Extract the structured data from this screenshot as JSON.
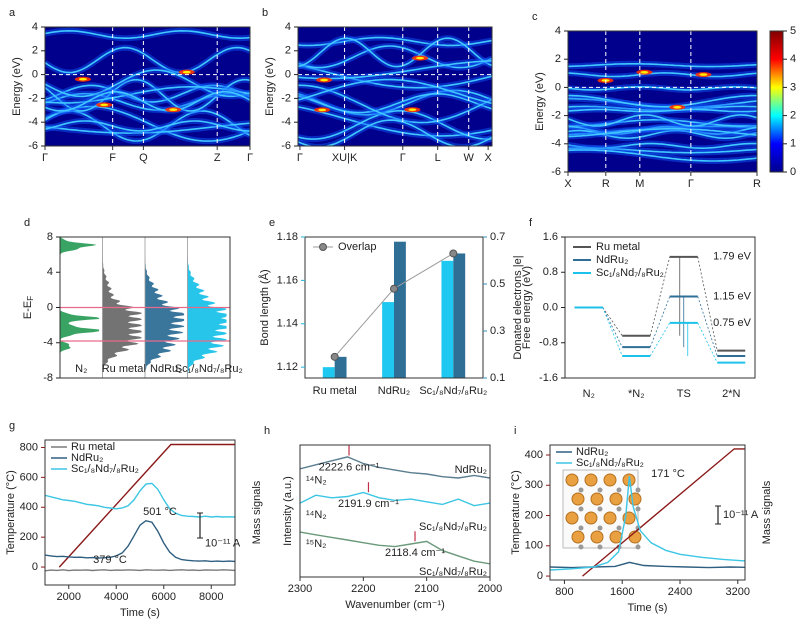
{
  "chart_data": [
    {
      "type": "heatmap",
      "label": "a",
      "ylabel": "Energy (eV)",
      "ylim": [
        -6,
        4
      ],
      "yticks": [
        -6,
        -4,
        -2,
        0,
        2,
        4
      ],
      "categories": [
        "Γ",
        "F",
        "Q",
        "Z",
        "Γ"
      ]
    },
    {
      "type": "heatmap",
      "label": "b",
      "ylabel": "Energy (eV)",
      "ylim": [
        -6,
        4
      ],
      "yticks": [
        -6,
        -4,
        -2,
        0,
        2,
        4
      ],
      "categories": [
        "Γ",
        "XU|K",
        "Γ",
        "L",
        "W",
        "X"
      ]
    },
    {
      "type": "heatmap",
      "label": "c",
      "ylabel": "Energy (eV)",
      "ylim": [
        -6,
        4
      ],
      "yticks": [
        -6,
        -4,
        -2,
        0,
        2,
        4
      ],
      "categories": [
        "X",
        "R",
        "M",
        "Γ",
        "R"
      ],
      "zlim": [
        0,
        5
      ],
      "zticks": [
        0,
        1,
        2,
        3,
        4,
        5
      ]
    },
    {
      "type": "dos",
      "label": "d",
      "ylabel": "E-E",
      "ylabel_sub": "F",
      "ylim": [
        -8,
        8
      ],
      "yticks": [
        -8,
        -4,
        0,
        4,
        8
      ],
      "categories": [
        "N₂",
        "Ru metal",
        "NdRu₂",
        "Sc₁/₈Nd₇/₈Ru₂"
      ],
      "colors": [
        "#2e9e5b",
        "#6b6b6b",
        "#2f6f96",
        "#1cc2ea"
      ],
      "reference_lines": [
        0,
        -3.8
      ]
    },
    {
      "type": "bar",
      "label": "e",
      "categories": [
        "Ru metal",
        "NdRu₂",
        "Sc₁/₈Nd₇/₈Ru₂"
      ],
      "ylabel": "Bond length (Å)",
      "y2label": "Donated electrons |e|",
      "ylim": [
        1.115,
        1.18
      ],
      "yticks": [
        1.12,
        1.14,
        1.16,
        1.18
      ],
      "y2lim": [
        0.1,
        0.7
      ],
      "y2ticks": [
        0.1,
        0.3,
        0.5,
        0.7
      ],
      "series": [
        {
          "color": "#1ec8f0",
          "values": [
            1.12,
            1.15,
            1.169
          ]
        },
        {
          "color": "#2f6f96",
          "values": [
            0.19,
            0.68,
            0.63
          ],
          "axis": "y2"
        },
        {
          "name": "Overlap",
          "type": "line",
          "color": "#9a9a9a",
          "values": [
            0.19,
            0.48,
            0.63
          ],
          "axis": "y2"
        }
      ]
    },
    {
      "type": "energy-diagram",
      "label": "f",
      "ylabel": "Free energy (eV)",
      "categories": [
        "N₂",
        "*N₂",
        "TS",
        "2*N"
      ],
      "ylim": [
        -1.6,
        1.6
      ],
      "yticks": [
        -1.6,
        -0.8,
        {
          "value": 0,
          "label": "0.0"
        },
        0.8,
        1.6
      ],
      "series": [
        {
          "name": "Ru metal",
          "color": "#555555",
          "values": [
            0,
            -0.64,
            1.15,
            -0.98
          ]
        },
        {
          "name": "NdRu₂",
          "color": "#2f6f96",
          "values": [
            0,
            -0.9,
            0.25,
            -1.1
          ]
        },
        {
          "name": "Sc₁/₈Nd₇/₈Ru₂",
          "color": "#1cc2ea",
          "values": [
            0,
            -1.1,
            -0.35,
            -1.25
          ]
        }
      ],
      "annotations": [
        "1.79 eV",
        "1.15 eV",
        "0.75 eV"
      ]
    },
    {
      "type": "line",
      "label": "g",
      "xlabel": "Time (s)",
      "ylabel": "Temperature (°C)",
      "y2label": "Mass signals",
      "axis_color": "#8b1a1a",
      "legend": true,
      "xlim": [
        1000,
        9000
      ],
      "xticks": [
        2000,
        4000,
        6000,
        8000
      ],
      "ylim": [
        -120,
        850
      ],
      "yticks": [
        0,
        200,
        400,
        600,
        800
      ],
      "x": [
        1000,
        1250,
        1500,
        1750,
        2000,
        2250,
        2500,
        2750,
        3000,
        3250,
        3500,
        3750,
        4000,
        4250,
        4500,
        4750,
        5000,
        5250,
        5500,
        5750,
        6000,
        6250,
        6500,
        6750,
        7000,
        7250,
        7500,
        7750,
        8000,
        8250,
        8500,
        8750,
        9000
      ],
      "series": [
        {
          "color": "#8b1a1a",
          "x": [
            1600,
            6300,
            9000
          ],
          "values": [
            0,
            820,
            820
          ]
        },
        {
          "name": "Ru metal",
          "color": "#7a7a7a",
          "values": [
            -25,
            -20,
            -22,
            -18,
            -24,
            -20,
            -21,
            -19,
            -23,
            -20,
            -18,
            -22,
            -20,
            -21,
            -19,
            -20,
            -22,
            -18,
            -20,
            -21,
            -19,
            -22,
            -20,
            -18,
            -21,
            -20,
            -22,
            -19,
            -20,
            -21,
            -18,
            -20,
            -22
          ]
        },
        {
          "name": "NdRu₂",
          "color": "#2f5f80",
          "values": [
            80,
            75,
            70,
            72,
            68,
            65,
            66,
            62,
            63,
            60,
            62,
            65,
            75,
            95,
            140,
            210,
            280,
            310,
            300,
            240,
            160,
            100,
            65,
            50,
            45,
            42,
            40,
            42,
            38,
            40,
            38,
            40,
            38
          ]
        },
        {
          "name": "Sc₁/₈Nd₇/₈Ru₂",
          "color": "#3cc6e4",
          "values": [
            480,
            470,
            460,
            450,
            445,
            440,
            430,
            420,
            415,
            410,
            400,
            395,
            390,
            395,
            410,
            450,
            510,
            555,
            560,
            520,
            450,
            390,
            360,
            345,
            340,
            338,
            335,
            340,
            335,
            338,
            335,
            336,
            335
          ]
        }
      ],
      "annotations": [
        "501 °C",
        "379 °C"
      ],
      "scale_bar": "10⁻¹¹ A"
    },
    {
      "type": "line",
      "label": "h",
      "xlabel": "Wavenumber (cm⁻¹)",
      "ylabel": "Intensity (a.u.)",
      "xlim": [
        2300,
        2000
      ],
      "xticks": [
        2300,
        2200,
        2100,
        2000
      ],
      "ylim": [
        0,
        10
      ],
      "x": [
        2300,
        2275,
        2250,
        2225,
        2200,
        2175,
        2150,
        2125,
        2100,
        2075,
        2050,
        2025,
        2000
      ],
      "series": [
        {
          "name": "NdRu₂",
          "isotope": "¹⁴N₂",
          "color": "#5a7d90",
          "peak": 2222.6,
          "peak_label": "2222.6 cm⁻¹",
          "values": [
            8.2,
            8.5,
            8.8,
            9.1,
            8.6,
            8.3,
            8.1,
            7.9,
            7.8,
            7.6,
            7.5,
            7.7,
            7.5
          ]
        },
        {
          "name": "Sc₁/₈Nd₇/₈Ru₂",
          "isotope": "¹⁴N₂",
          "color": "#3cc6e4",
          "peak": 2191.9,
          "peak_label": "2191.9 cm⁻¹",
          "values": [
            5.6,
            6.2,
            6.0,
            6.1,
            6.4,
            6.0,
            5.8,
            5.9,
            5.7,
            5.5,
            5.9,
            5.4,
            5.6
          ]
        },
        {
          "name": "Sc₁/₈Nd₇/₈Ru₂",
          "isotope": "¹⁵N₂",
          "color": "#6a9a7a",
          "peak": 2118.4,
          "peak_label": "2118.4 cm⁻¹",
          "values": [
            3.4,
            3.2,
            3.0,
            2.8,
            2.6,
            2.4,
            2.3,
            2.5,
            2.7,
            2.0,
            1.6,
            1.2,
            1.0
          ]
        }
      ]
    },
    {
      "type": "line",
      "label": "i",
      "xlabel": "Time (s)",
      "ylabel": "Temperature (°C)",
      "y2label": "Mass signals",
      "axis_color": "#8b1a1a",
      "legend": true,
      "xlim": [
        600,
        3300
      ],
      "xticks": [
        800,
        1600,
        2400,
        3200
      ],
      "ylim": [
        -13,
        433
      ],
      "yticks": [
        0,
        100,
        200,
        300,
        400
      ],
      "series": [
        {
          "color": "#8b1a1a",
          "x": [
            1050,
            3150,
            3300
          ],
          "values": [
            0,
            420,
            420
          ]
        },
        {
          "name": "NdRu₂",
          "color": "#2f5f80",
          "x": [
            600,
            900,
            1200,
            1500,
            1700,
            1900,
            2200,
            2500,
            2800,
            3100,
            3300
          ],
          "values": [
            30,
            28,
            30,
            32,
            45,
            35,
            32,
            30,
            28,
            30,
            29
          ]
        },
        {
          "name": "Sc₁/₈Nd₇/₈Ru₂",
          "color": "#3cc6e4",
          "x": [
            600,
            900,
            1200,
            1400,
            1550,
            1650,
            1700,
            1750,
            1850,
            2000,
            2200,
            2400,
            2700,
            3000,
            3300
          ],
          "values": [
            20,
            24,
            30,
            45,
            80,
            200,
            330,
            230,
            150,
            110,
            85,
            72,
            62,
            55,
            50
          ]
        }
      ],
      "annotations": [
        "171 °C"
      ],
      "scale_bar": "10⁻¹¹ A"
    }
  ]
}
